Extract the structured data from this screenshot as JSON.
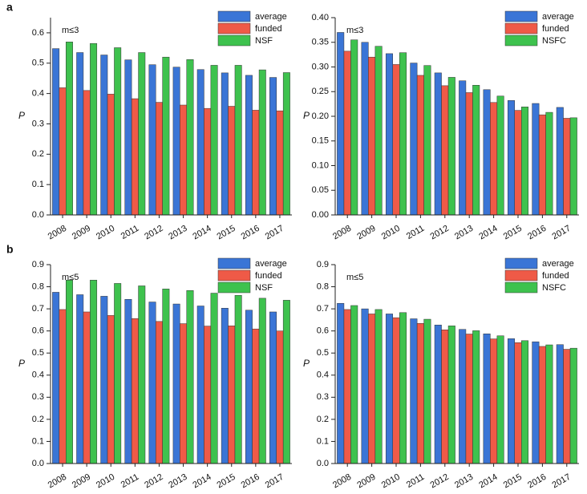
{
  "chart_data": [
    {
      "type": "bar",
      "panel_label": "a",
      "annotation": "m≤3",
      "y_label": "P",
      "categories": [
        "2008",
        "2009",
        "2010",
        "2011",
        "2012",
        "2013",
        "2014",
        "2015",
        "2016",
        "2017"
      ],
      "series": [
        {
          "name": "average",
          "color": "#3a75d6",
          "values": [
            0.548,
            0.535,
            0.527,
            0.511,
            0.495,
            0.487,
            0.479,
            0.468,
            0.46,
            0.453
          ]
        },
        {
          "name": "funded",
          "color": "#ef5a47",
          "values": [
            0.419,
            0.41,
            0.398,
            0.383,
            0.371,
            0.362,
            0.351,
            0.358,
            0.345,
            0.343
          ]
        },
        {
          "name": "NSF",
          "color": "#3ec24e",
          "values": [
            0.57,
            0.565,
            0.551,
            0.535,
            0.52,
            0.512,
            0.493,
            0.493,
            0.478,
            0.469
          ]
        }
      ],
      "ylim": [
        0,
        0.65
      ],
      "yticks": [
        {
          "value": 0,
          "label": "0.0"
        },
        0.1,
        0.2,
        0.3,
        0.4,
        0.5,
        0.6
      ],
      "legend": "top-right"
    },
    {
      "type": "bar",
      "annotation": "m≤3",
      "y_label": "P",
      "categories": [
        "2008",
        "2009",
        "2010",
        "2011",
        "2012",
        "2013",
        "2014",
        "2015",
        "2016",
        "2017"
      ],
      "series": [
        {
          "name": "average",
          "color": "#3a75d6",
          "values": [
            0.37,
            0.35,
            0.327,
            0.308,
            0.288,
            0.272,
            0.254,
            0.232,
            0.226,
            0.218
          ]
        },
        {
          "name": "funded",
          "color": "#ef5a47",
          "values": [
            0.332,
            0.32,
            0.305,
            0.283,
            0.262,
            0.248,
            0.228,
            0.212,
            0.203,
            0.196
          ]
        },
        {
          "name": "NSFC",
          "color": "#3ec24e",
          "values": [
            0.355,
            0.342,
            0.329,
            0.303,
            0.279,
            0.263,
            0.241,
            0.219,
            0.208,
            0.197
          ]
        }
      ],
      "ylim": [
        0,
        0.4
      ],
      "yticks": [
        {
          "value": 0,
          "label": "0.00"
        },
        0.05,
        {
          "value": 0.1,
          "label": "0.10"
        },
        0.15,
        {
          "value": 0.2,
          "label": "0.20"
        },
        0.25,
        {
          "value": 0.3,
          "label": "0.30"
        },
        0.35,
        {
          "value": 0.4,
          "label": "0.40"
        }
      ],
      "legend": "top-right"
    },
    {
      "type": "bar",
      "panel_label": "b",
      "annotation": "m≤5",
      "y_label": "P",
      "categories": [
        "2008",
        "2009",
        "2010",
        "2011",
        "2012",
        "2013",
        "2014",
        "2015",
        "2016",
        "2017"
      ],
      "series": [
        {
          "name": "average",
          "color": "#3a75d6",
          "values": [
            0.775,
            0.764,
            0.757,
            0.743,
            0.731,
            0.722,
            0.713,
            0.703,
            0.694,
            0.686
          ]
        },
        {
          "name": "funded",
          "color": "#ef5a47",
          "values": [
            0.697,
            0.686,
            0.67,
            0.656,
            0.643,
            0.633,
            0.622,
            0.623,
            0.609,
            0.6
          ]
        },
        {
          "name": "NSF",
          "color": "#3ec24e",
          "values": [
            0.83,
            0.83,
            0.815,
            0.804,
            0.79,
            0.783,
            0.771,
            0.761,
            0.748,
            0.739
          ]
        }
      ],
      "ylim": [
        0,
        0.9
      ],
      "yticks": [
        {
          "value": 0,
          "label": "0.0"
        },
        0.1,
        0.2,
        0.3,
        0.4,
        0.5,
        0.6,
        0.7,
        0.8,
        0.9
      ],
      "legend": "top-right"
    },
    {
      "type": "bar",
      "annotation": "m≤5",
      "y_label": "P",
      "categories": [
        "2008",
        "2009",
        "2010",
        "2011",
        "2012",
        "2013",
        "2014",
        "2015",
        "2016",
        "2017"
      ],
      "series": [
        {
          "name": "average",
          "color": "#3a75d6",
          "values": [
            0.725,
            0.7,
            0.677,
            0.655,
            0.627,
            0.607,
            0.587,
            0.565,
            0.551,
            0.538
          ]
        },
        {
          "name": "funded",
          "color": "#ef5a47",
          "values": [
            0.697,
            0.677,
            0.66,
            0.634,
            0.605,
            0.586,
            0.564,
            0.547,
            0.53,
            0.517
          ]
        },
        {
          "name": "NSFC",
          "color": "#3ec24e",
          "values": [
            0.715,
            0.697,
            0.683,
            0.653,
            0.623,
            0.601,
            0.578,
            0.556,
            0.537,
            0.522
          ]
        }
      ],
      "ylim": [
        0,
        0.9
      ],
      "yticks": [
        {
          "value": 0,
          "label": "0.0"
        },
        0.1,
        0.2,
        0.3,
        0.4,
        0.5,
        0.6,
        0.7,
        0.8,
        0.9
      ],
      "legend": "top-right"
    }
  ]
}
